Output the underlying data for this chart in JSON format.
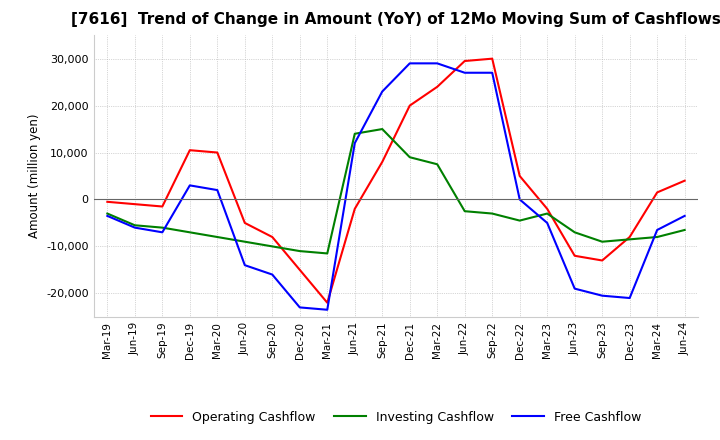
{
  "title": "[7616]  Trend of Change in Amount (YoY) of 12Mo Moving Sum of Cashflows",
  "ylabel": "Amount (million yen)",
  "ylim": [
    -25000,
    35000
  ],
  "yticks": [
    -20000,
    -10000,
    0,
    10000,
    20000,
    30000
  ],
  "x_labels": [
    "Mar-19",
    "Jun-19",
    "Sep-19",
    "Dec-19",
    "Mar-20",
    "Jun-20",
    "Sep-20",
    "Dec-20",
    "Mar-21",
    "Jun-21",
    "Sep-21",
    "Dec-21",
    "Mar-22",
    "Jun-22",
    "Sep-22",
    "Dec-22",
    "Mar-23",
    "Jun-23",
    "Sep-23",
    "Dec-23",
    "Mar-24",
    "Jun-24"
  ],
  "operating": [
    -500,
    -1000,
    -1500,
    10500,
    10000,
    -5000,
    -8000,
    -15000,
    -22000,
    -2000,
    8000,
    20000,
    24000,
    29500,
    30000,
    5000,
    -2000,
    -12000,
    -13000,
    -8000,
    1500,
    4000
  ],
  "investing": [
    -3000,
    -5500,
    -6000,
    -7000,
    -8000,
    -9000,
    -10000,
    -11000,
    -11500,
    14000,
    15000,
    9000,
    7500,
    -2500,
    -3000,
    -4500,
    -3000,
    -7000,
    -9000,
    -8500,
    -8000,
    -6500
  ],
  "free": [
    -3500,
    -6000,
    -7000,
    3000,
    2000,
    -14000,
    -16000,
    -23000,
    -23500,
    12000,
    23000,
    29000,
    29000,
    27000,
    27000,
    0,
    -5000,
    -19000,
    -20500,
    -21000,
    -6500,
    -3500
  ],
  "operating_color": "#ff0000",
  "investing_color": "#008000",
  "free_color": "#0000ff",
  "grid_color": "#b0b0b0",
  "background_color": "#ffffff",
  "title_fontsize": 11,
  "legend_labels": [
    "Operating Cashflow",
    "Investing Cashflow",
    "Free Cashflow"
  ]
}
